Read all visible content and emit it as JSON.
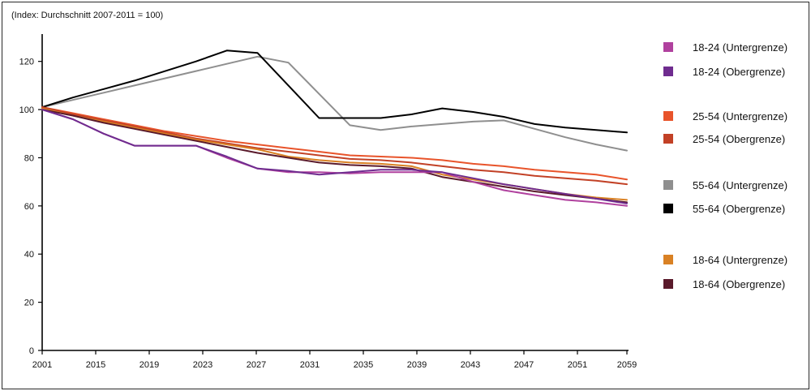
{
  "chart_data": {
    "type": "line",
    "subtitle": "(Index: Durchschnitt 2007-2011 = 100)",
    "x_ticks": [
      "2001",
      "2015",
      "2019",
      "2023",
      "2027",
      "2031",
      "2035",
      "2039",
      "2043",
      "2047",
      "2051",
      "2059"
    ],
    "y_ticks": [
      "0",
      "20",
      "40",
      "60",
      "80",
      "100",
      "120"
    ],
    "ylim": [
      0,
      130
    ],
    "grid": false,
    "legend_position": "right",
    "series": [
      {
        "name": "18-24 (Untergrenze)",
        "color": "#b0419e",
        "values": [
          100,
          96,
          90,
          85,
          85,
          85,
          80,
          75.5,
          74,
          74,
          73.5,
          74,
          74,
          74,
          70,
          66.5,
          64.5,
          62.5,
          61.5,
          60
        ]
      },
      {
        "name": "18-24 (Obergrenze)",
        "color": "#6f2c8f",
        "values": [
          100,
          96,
          90,
          85,
          85,
          85,
          80.5,
          75.5,
          74.5,
          73,
          74,
          75,
          75,
          74,
          71.5,
          69,
          67,
          65,
          63,
          61
        ]
      },
      {
        "name": "25-54 (Untergrenze)",
        "color": "#e8542b",
        "values": [
          101,
          98.5,
          96,
          93.5,
          91,
          89,
          87,
          85.5,
          84,
          82.5,
          81,
          80.5,
          80,
          79,
          77.5,
          76.5,
          75,
          74,
          73,
          71
        ]
      },
      {
        "name": "25-54 (Obergrenze)",
        "color": "#c24126",
        "values": [
          101,
          98,
          95.5,
          93,
          90.5,
          88,
          86,
          84,
          82.5,
          81,
          79.5,
          79,
          78,
          76.5,
          75,
          74,
          72.5,
          71.5,
          70.5,
          69
        ]
      },
      {
        "name": "55-64 (Untergrenze)",
        "color": "#8f8f8f",
        "values": [
          101,
          104,
          107,
          110,
          113,
          116,
          119,
          122,
          119.5,
          106.5,
          93.5,
          91.5,
          93,
          94,
          95,
          95.5,
          92,
          88.5,
          85.5,
          83
        ]
      },
      {
        "name": "55-64 (Obergrenze)",
        "color": "#000000",
        "values": [
          101,
          105,
          108.5,
          112,
          116,
          120,
          124.5,
          123.5,
          110,
          96.5,
          96.5,
          96.5,
          98,
          100.5,
          99,
          97,
          94,
          92.5,
          91.5,
          90.5
        ]
      },
      {
        "name": "18-64 (Untergrenze)",
        "color": "#d98124",
        "values": [
          100.5,
          97.5,
          95,
          92.5,
          90,
          87.5,
          85.5,
          83.5,
          80.5,
          79,
          78,
          77.5,
          76.5,
          73,
          71,
          69,
          67,
          65,
          63.5,
          62.5
        ]
      },
      {
        "name": "18-64  (Obergrenze)",
        "color": "#5a1a2b",
        "values": [
          100,
          97.5,
          94.5,
          92,
          89.5,
          87,
          84.5,
          82,
          80,
          78,
          77,
          76.5,
          75.5,
          72,
          70,
          68,
          66,
          64.5,
          63,
          61.5
        ]
      }
    ]
  }
}
